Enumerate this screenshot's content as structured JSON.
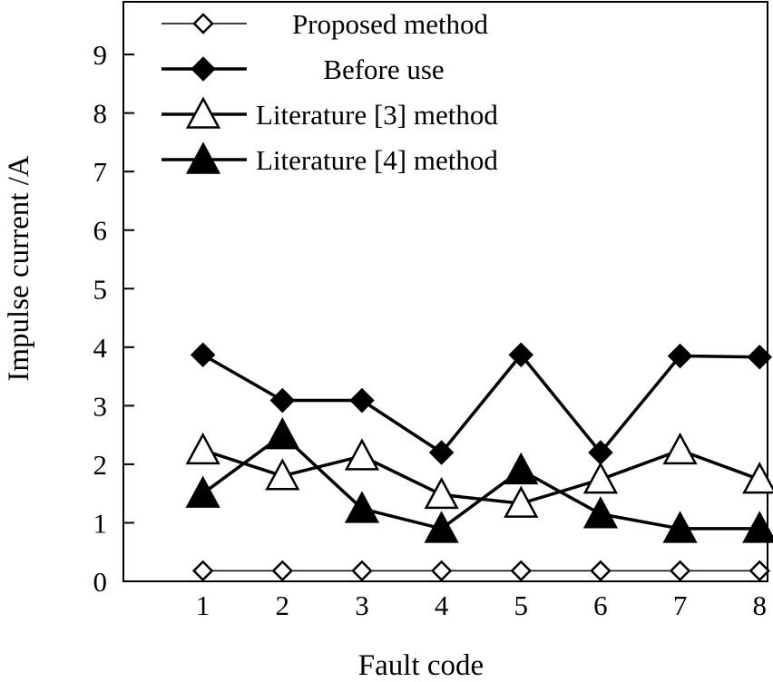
{
  "chart_data": {
    "type": "line",
    "xlabel": "Fault code",
    "ylabel": "Impulse current /A",
    "x": [
      1,
      2,
      3,
      4,
      5,
      6,
      7,
      8
    ],
    "xlim": [
      0,
      8.1
    ],
    "ylim": [
      0,
      9.9
    ],
    "y_ticks": [
      0,
      1,
      2,
      3,
      4,
      5,
      6,
      7,
      8,
      9
    ],
    "grid": false,
    "legend_placement": "top-left",
    "series": [
      {
        "name": "Proposed method",
        "marker": "diamond-open",
        "line_width": "thin",
        "values": [
          0.18,
          0.18,
          0.18,
          0.18,
          0.18,
          0.18,
          0.18,
          0.18
        ]
      },
      {
        "name": "Before use",
        "marker": "diamond-filled",
        "line_width": "thick",
        "values": [
          3.87,
          3.09,
          3.09,
          2.2,
          3.87,
          2.2,
          3.85,
          3.83
        ]
      },
      {
        "name": "Literature [3] method",
        "marker": "triangle-open",
        "line_width": "thick",
        "values": [
          2.24,
          1.8,
          2.14,
          1.48,
          1.33,
          1.74,
          2.24,
          1.74
        ]
      },
      {
        "name": "Literature [4] method",
        "marker": "triangle-filled",
        "line_width": "thick",
        "values": [
          1.5,
          2.5,
          1.24,
          0.9,
          1.9,
          1.15,
          0.9,
          0.9
        ]
      }
    ]
  }
}
